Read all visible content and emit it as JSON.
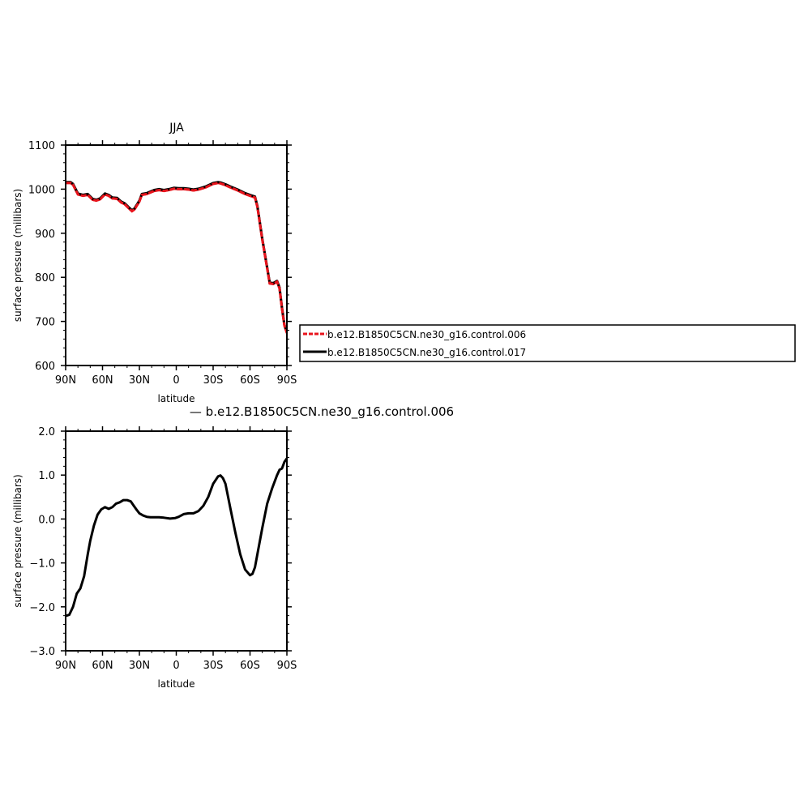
{
  "chart_data": [
    {
      "type": "line",
      "title": "JJA",
      "xlabel": "latitude",
      "ylabel": "surface pressure (millibars)",
      "xlim": [
        90,
        -90
      ],
      "ylim": [
        600,
        1100
      ],
      "x_tick_values": [
        90,
        60,
        30,
        0,
        -30,
        -60,
        -90
      ],
      "x_tick_labels": [
        "90N",
        "60N",
        "30N",
        "0",
        "30S",
        "60S",
        "90S"
      ],
      "y_tick_values": [
        600,
        700,
        800,
        900,
        1000,
        1100
      ],
      "y_tick_labels": [
        "600",
        "700",
        "800",
        "900",
        "1000",
        "1100"
      ],
      "legend_position": "right",
      "series": [
        {
          "name": "b.e12.B1850C5CN.ne30_g16.control.006",
          "color": "#e8141c",
          "dash": "dashed",
          "x": [
            90,
            86,
            84,
            80,
            76,
            72,
            68,
            65,
            62,
            58,
            55,
            52,
            48,
            45,
            42,
            38,
            36,
            34,
            30,
            28,
            24,
            18,
            14,
            10,
            6,
            2,
            -2,
            -6,
            -10,
            -14,
            -18,
            -24,
            -30,
            -34,
            -36,
            -40,
            -44,
            -50,
            -56,
            -60,
            -64,
            -66,
            -70,
            -74,
            -76,
            -79,
            -82,
            -84,
            -86,
            -88,
            -90
          ],
          "y": [
            1014,
            1014,
            1010,
            988,
            985,
            987,
            976,
            974,
            977,
            988,
            985,
            979,
            978,
            970,
            966,
            955,
            950,
            954,
            972,
            987,
            989,
            996,
            998,
            996,
            998,
            1001,
            1000,
            1000,
            999,
            997,
            999,
            1004,
            1012,
            1014,
            1013,
            1009,
            1004,
            997,
            989,
            985,
            981,
            960,
            885,
            820,
            786,
            785,
            790,
            775,
            730,
            690,
            674
          ]
        },
        {
          "name": "b.e12.B1850C5CN.ne30_g16.control.017",
          "color": "#000000",
          "dash": "solid",
          "x": [
            90,
            86,
            84,
            80,
            76,
            72,
            68,
            65,
            62,
            58,
            55,
            52,
            48,
            45,
            42,
            38,
            36,
            34,
            30,
            28,
            24,
            18,
            14,
            10,
            6,
            2,
            -2,
            -6,
            -10,
            -14,
            -18,
            -24,
            -30,
            -34,
            -36,
            -40,
            -44,
            -50,
            -56,
            -60,
            -64,
            -66,
            -70,
            -74,
            -76,
            -79,
            -82,
            -84,
            -86,
            -88,
            -90
          ],
          "y": [
            1016,
            1016,
            1012,
            990,
            987,
            989,
            978,
            976,
            979,
            990,
            987,
            981,
            980,
            972,
            968,
            957,
            952,
            956,
            974,
            989,
            991,
            998,
            1000,
            998,
            1000,
            1003,
            1002,
            1002,
            1001,
            999,
            1001,
            1006,
            1014,
            1016,
            1015,
            1011,
            1006,
            999,
            991,
            987,
            983,
            962,
            887,
            822,
            788,
            787,
            792,
            777,
            732,
            692,
            676
          ]
        }
      ]
    },
    {
      "type": "line",
      "title": "— b.e12.B1850C5CN.ne30_g16.control.006",
      "xlabel": "latitude",
      "ylabel": "surface pressure (millibars)",
      "xlim": [
        90,
        -90
      ],
      "ylim": [
        -3.0,
        2.0
      ],
      "x_tick_values": [
        90,
        60,
        30,
        0,
        -30,
        -60,
        -90
      ],
      "x_tick_labels": [
        "90N",
        "60N",
        "30N",
        "0",
        "30S",
        "60S",
        "90S"
      ],
      "y_tick_values": [
        -3.0,
        -2.0,
        -1.0,
        0.0,
        1.0,
        2.0
      ],
      "y_tick_labels": [
        "−3.0",
        "−2.0",
        "−1.0",
        "0.0",
        "1.0",
        "2.0"
      ],
      "series": [
        {
          "color": "#000000",
          "dash": "solid",
          "x": [
            89,
            87,
            84,
            81,
            78,
            75,
            72,
            70,
            67,
            64,
            61,
            58,
            55,
            52,
            49,
            46,
            43,
            40,
            37,
            35,
            32,
            30,
            27,
            24,
            21,
            18,
            14,
            10,
            5,
            1,
            -2,
            -6,
            -10,
            -14,
            -18,
            -22,
            -26,
            -30,
            -34,
            -36,
            -38,
            -40,
            -44,
            -48,
            -52,
            -56,
            -60,
            -62,
            -64,
            -66,
            -70,
            -74,
            -78,
            -82,
            -84,
            -86,
            -88,
            -90
          ],
          "y": [
            -2.2,
            -2.18,
            -2.0,
            -1.7,
            -1.58,
            -1.3,
            -0.8,
            -0.5,
            -0.15,
            0.1,
            0.22,
            0.27,
            0.23,
            0.27,
            0.35,
            0.38,
            0.43,
            0.43,
            0.4,
            0.32,
            0.2,
            0.13,
            0.08,
            0.05,
            0.04,
            0.04,
            0.04,
            0.03,
            0.01,
            0.02,
            0.05,
            0.11,
            0.13,
            0.13,
            0.18,
            0.3,
            0.5,
            0.8,
            0.97,
            0.99,
            0.93,
            0.8,
            0.25,
            -0.3,
            -0.8,
            -1.15,
            -1.28,
            -1.25,
            -1.1,
            -0.8,
            -0.2,
            0.35,
            0.7,
            1.0,
            1.12,
            1.15,
            1.3,
            1.38
          ]
        }
      ]
    }
  ]
}
